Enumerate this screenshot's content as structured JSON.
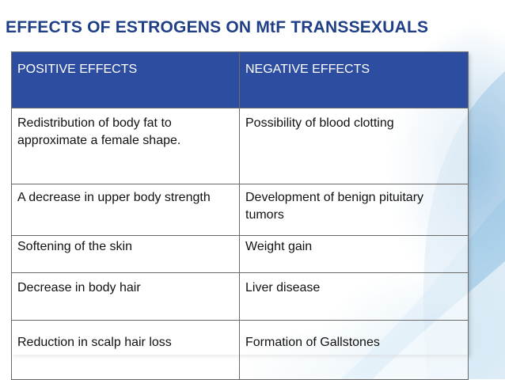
{
  "slide": {
    "title": "EFFECTS OF ESTROGENS ON MtF TRANSSEXUALS",
    "title_color": "#1f3f86",
    "header_color": "#2d4da0"
  },
  "table": {
    "headers": [
      "POSITIVE EFFECTS",
      "NEGATIVE EFFECTS"
    ],
    "rows": [
      [
        "Redistribution of body fat to approximate  a female shape.",
        "Possibility of blood clotting"
      ],
      [
        "A decrease in upper body strength",
        "Development of benign pituitary  tumors"
      ],
      [
        "Softening of the skin",
        "Weight gain"
      ],
      [
        "Decrease in body hair",
        "Liver disease"
      ],
      [
        "Reduction in scalp hair loss",
        "Formation of Gallstones"
      ]
    ]
  }
}
